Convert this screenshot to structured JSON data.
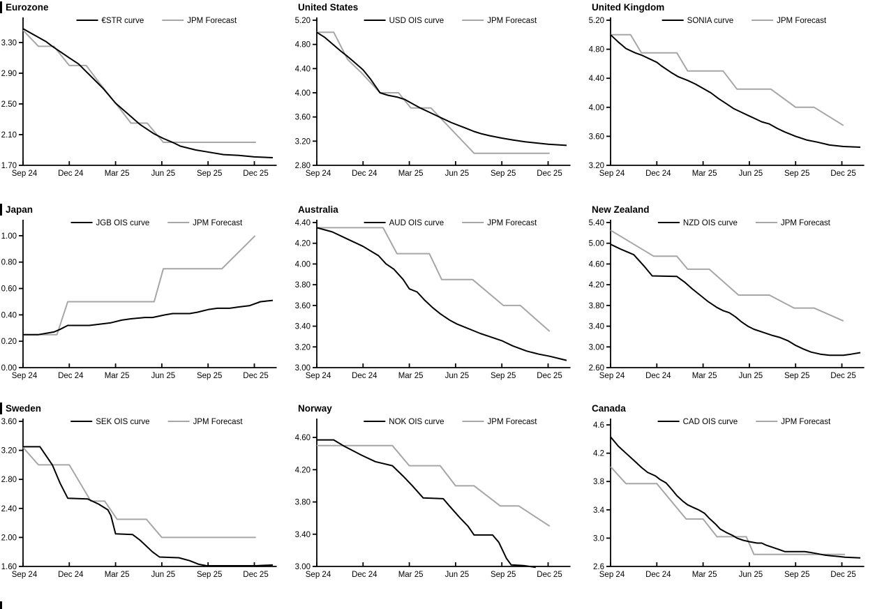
{
  "colors": {
    "curve": "#000000",
    "forecast": "#a6a6a6",
    "axis": "#000000",
    "accent_bar": "#000000"
  },
  "x_axis": {
    "tick_labels": [
      "Sep 24",
      "Dec 24",
      "Mar 25",
      "Jun 25",
      "Sep 25",
      "Dec 25"
    ],
    "tick_months": [
      0,
      3,
      6,
      9,
      12,
      15
    ],
    "month_span": 16.45
  },
  "chart_data": [
    {
      "type": "line",
      "title": "Eurozone",
      "legend_position": "top-center",
      "y_axis": {
        "ticks": [
          1.7,
          2.1,
          2.5,
          2.9,
          3.3
        ],
        "min": 1.7,
        "max": 3.59,
        "decimals": 2
      },
      "series": [
        {
          "name": "€STR curve",
          "role": "curve",
          "x": [
            0,
            0.7,
            1.5,
            1.9,
            3,
            3.6,
            4.2,
            5.2,
            6,
            6.8,
            7.6,
            8.5,
            9.1,
            9.8,
            10.2,
            11.2,
            11.8,
            13,
            14,
            15,
            16.2
          ],
          "y": [
            3.48,
            3.4,
            3.31,
            3.25,
            3.1,
            3.02,
            2.9,
            2.7,
            2.51,
            2.37,
            2.23,
            2.11,
            2.05,
            1.99,
            1.95,
            1.9,
            1.88,
            1.84,
            1.83,
            1.81,
            1.8
          ]
        },
        {
          "name": "JPM Forecast",
          "role": "forecast",
          "x": [
            0,
            1,
            2,
            3,
            4.1,
            5,
            6,
            7,
            8.05,
            9.1,
            15.1
          ],
          "y": [
            3.46,
            3.25,
            3.25,
            3.0,
            3.0,
            2.76,
            2.51,
            2.25,
            2.25,
            2.0,
            2.0
          ]
        }
      ]
    },
    {
      "type": "line",
      "title": "United States",
      "legend_position": "top-center",
      "y_axis": {
        "ticks": [
          2.8,
          3.2,
          3.6,
          4.0,
          4.4,
          4.8,
          5.2
        ],
        "min": 2.8,
        "max": 5.2,
        "decimals": 2
      },
      "series": [
        {
          "name": "USD OIS curve",
          "role": "curve",
          "x": [
            0,
            0.5,
            1,
            1.5,
            2,
            2.5,
            3,
            3.5,
            4.1,
            4.6,
            5.2,
            5.7,
            6.2,
            6.7,
            7.2,
            7.7,
            8.2,
            8.7,
            9.2,
            9.7,
            10.2,
            10.7,
            11.2,
            12,
            12.7,
            13.5,
            14.2,
            15,
            16.2
          ],
          "y": [
            5.0,
            4.92,
            4.81,
            4.7,
            4.6,
            4.49,
            4.38,
            4.22,
            4.0,
            3.96,
            3.93,
            3.89,
            3.82,
            3.75,
            3.69,
            3.63,
            3.57,
            3.51,
            3.46,
            3.41,
            3.36,
            3.32,
            3.29,
            3.25,
            3.22,
            3.19,
            3.17,
            3.15,
            3.13
          ]
        },
        {
          "name": "JPM Forecast",
          "role": "forecast",
          "x": [
            0,
            1.1,
            2,
            2.9,
            4.1,
            5.3,
            6.1,
            7.4,
            10.2,
            15.1
          ],
          "y": [
            5.0,
            5.0,
            4.55,
            4.33,
            4.0,
            4.0,
            3.75,
            3.75,
            3.0,
            3.0
          ]
        }
      ]
    },
    {
      "type": "line",
      "title": "United Kingdom",
      "legend_position": "top-center",
      "y_axis": {
        "ticks": [
          3.2,
          3.6,
          4.0,
          4.4,
          4.8,
          5.2
        ],
        "min": 3.2,
        "max": 5.2,
        "decimals": 2
      },
      "series": [
        {
          "name": "SONIA curve",
          "role": "curve",
          "x": [
            0,
            0.5,
            1,
            1.6,
            2,
            3,
            3.3,
            4,
            4.4,
            5,
            5.5,
            6,
            6.5,
            7,
            7.5,
            8,
            8.5,
            9,
            9.4,
            9.8,
            10.3,
            10.8,
            11.3,
            12,
            12.7,
            13.4,
            14.2,
            15.1,
            16.2
          ],
          "y": [
            5.0,
            4.9,
            4.81,
            4.75,
            4.72,
            4.62,
            4.57,
            4.47,
            4.42,
            4.37,
            4.32,
            4.26,
            4.2,
            4.12,
            4.05,
            3.98,
            3.93,
            3.88,
            3.84,
            3.8,
            3.77,
            3.71,
            3.66,
            3.6,
            3.55,
            3.52,
            3.48,
            3.46,
            3.45
          ]
        },
        {
          "name": "JPM Forecast",
          "role": "forecast",
          "x": [
            0,
            1.3,
            2,
            4.3,
            5,
            7.3,
            8.2,
            10.4,
            12,
            13.2,
            15.1
          ],
          "y": [
            5.0,
            5.0,
            4.75,
            4.75,
            4.5,
            4.5,
            4.25,
            4.25,
            4.0,
            4.0,
            3.75
          ]
        }
      ]
    },
    {
      "type": "line",
      "title": "Japan",
      "legend_position": "top-center",
      "y_axis": {
        "ticks": [
          0.0,
          0.2,
          0.4,
          0.6,
          0.8,
          1.0
        ],
        "min": 0.0,
        "max": 1.1,
        "decimals": 2
      },
      "series": [
        {
          "name": "JGB OIS curve",
          "role": "curve",
          "x": [
            0,
            1,
            2,
            2.4,
            2.9,
            4.3,
            5,
            5.7,
            6.4,
            7,
            7.9,
            8.4,
            9.2,
            9.7,
            10.8,
            11.3,
            12,
            12.6,
            13.4,
            14,
            14.7,
            15.4,
            16.2
          ],
          "y": [
            0.25,
            0.25,
            0.27,
            0.29,
            0.32,
            0.32,
            0.33,
            0.34,
            0.36,
            0.37,
            0.38,
            0.38,
            0.4,
            0.41,
            0.41,
            0.42,
            0.44,
            0.45,
            0.45,
            0.46,
            0.47,
            0.5,
            0.51
          ]
        },
        {
          "name": "JPM Forecast",
          "role": "forecast",
          "x": [
            0,
            2.2,
            2.9,
            8.5,
            9.1,
            12.9,
            15.05
          ],
          "y": [
            0.25,
            0.25,
            0.5,
            0.5,
            0.75,
            0.75,
            1.0
          ]
        }
      ]
    },
    {
      "type": "line",
      "title": "Australia",
      "legend_position": "top-center",
      "y_axis": {
        "ticks": [
          3.0,
          3.2,
          3.4,
          3.6,
          3.8,
          4.0,
          4.2,
          4.4
        ],
        "min": 3.0,
        "max": 4.4,
        "decimals": 2
      },
      "series": [
        {
          "name": "AUD OIS curve",
          "role": "curve",
          "x": [
            0,
            1,
            2,
            3,
            4,
            4.5,
            5,
            5.6,
            6,
            6.5,
            7,
            7.5,
            8,
            8.6,
            9.1,
            9.6,
            10.1,
            10.6,
            11.2,
            12,
            12.7,
            13.6,
            14.4,
            15.1,
            16.2
          ],
          "y": [
            4.35,
            4.31,
            4.24,
            4.17,
            4.08,
            4.0,
            3.95,
            3.85,
            3.76,
            3.73,
            3.65,
            3.58,
            3.52,
            3.46,
            3.42,
            3.39,
            3.36,
            3.33,
            3.3,
            3.26,
            3.21,
            3.16,
            3.13,
            3.11,
            3.07
          ]
        },
        {
          "name": "JPM Forecast",
          "role": "forecast",
          "x": [
            0,
            4.3,
            5.2,
            7.3,
            8.1,
            10.1,
            12.1,
            13.2,
            15.1
          ],
          "y": [
            4.35,
            4.35,
            4.1,
            4.1,
            3.85,
            3.85,
            3.6,
            3.6,
            3.35
          ]
        }
      ]
    },
    {
      "type": "line",
      "title": "New Zealand",
      "legend_position": "top-center",
      "y_axis": {
        "ticks": [
          2.6,
          3.0,
          3.4,
          3.8,
          4.2,
          4.6,
          5.0,
          5.4
        ],
        "min": 2.6,
        "max": 5.4,
        "decimals": 2
      },
      "series": [
        {
          "name": "NZD OIS curve",
          "role": "curve",
          "x": [
            0,
            0.7,
            1.5,
            2.2,
            2.7,
            4.3,
            4.8,
            5.3,
            5.8,
            6.3,
            6.9,
            7.3,
            7.7,
            8.1,
            8.5,
            8.9,
            9.3,
            10,
            10.5,
            11,
            11.5,
            12,
            12.5,
            13,
            13.6,
            14.2,
            15.1,
            15.6,
            16.2
          ],
          "y": [
            4.98,
            4.88,
            4.78,
            4.55,
            4.37,
            4.36,
            4.25,
            4.12,
            4.0,
            3.88,
            3.76,
            3.7,
            3.66,
            3.58,
            3.48,
            3.4,
            3.34,
            3.27,
            3.22,
            3.18,
            3.12,
            3.03,
            2.96,
            2.9,
            2.86,
            2.84,
            2.84,
            2.86,
            2.89
          ]
        },
        {
          "name": "JPM Forecast",
          "role": "forecast",
          "x": [
            0,
            2.8,
            4.3,
            5,
            6.4,
            8.3,
            10.3,
            11.9,
            13.2,
            15.1
          ],
          "y": [
            5.25,
            4.75,
            4.75,
            4.5,
            4.5,
            4.0,
            4.0,
            3.75,
            3.75,
            3.5
          ]
        }
      ]
    },
    {
      "type": "line",
      "title": "Sweden",
      "legend_position": "top-center",
      "y_axis": {
        "ticks": [
          1.6,
          2.0,
          2.4,
          2.8,
          3.2,
          3.6
        ],
        "min": 1.6,
        "max": 3.6,
        "decimals": 2
      },
      "series": [
        {
          "name": "SEK OIS curve",
          "role": "curve",
          "x": [
            0,
            1.1,
            1.9,
            2.4,
            2.9,
            4.2,
            4.9,
            5.5,
            5.7,
            6,
            7.1,
            7.6,
            8.4,
            8.85,
            10.1,
            10.8,
            11.4,
            11.9,
            15.1,
            16.2
          ],
          "y": [
            3.25,
            3.25,
            3.0,
            2.75,
            2.54,
            2.53,
            2.46,
            2.38,
            2.3,
            2.05,
            2.04,
            1.96,
            1.8,
            1.73,
            1.72,
            1.68,
            1.63,
            1.61,
            1.61,
            1.62
          ]
        },
        {
          "name": "JPM Forecast",
          "role": "forecast",
          "x": [
            0,
            1,
            3,
            4.4,
            5.3,
            6.1,
            8,
            9,
            15.1
          ],
          "y": [
            3.24,
            3.0,
            3.0,
            2.5,
            2.5,
            2.25,
            2.25,
            2.0,
            2.0
          ]
        }
      ]
    },
    {
      "type": "line",
      "title": "Norway",
      "legend_position": "top-center",
      "y_axis": {
        "ticks": [
          3.0,
          3.4,
          3.8,
          4.2,
          4.6
        ],
        "min": 3.0,
        "max": 4.8,
        "decimals": 2
      },
      "series": [
        {
          "name": "NOK OIS curve",
          "role": "curve",
          "x": [
            0,
            1.1,
            1.7,
            2.9,
            3.8,
            4.9,
            5.6,
            6.2,
            6.9,
            8.2,
            8.6,
            9.3,
            9.8,
            10.2,
            11.4,
            11.8,
            12.3,
            12.6,
            13.4,
            14.2
          ],
          "y": [
            4.57,
            4.57,
            4.5,
            4.38,
            4.3,
            4.25,
            4.12,
            4.0,
            3.85,
            3.84,
            3.75,
            3.6,
            3.5,
            3.39,
            3.39,
            3.3,
            3.1,
            3.02,
            3.01,
            2.99
          ]
        },
        {
          "name": "JPM Forecast",
          "role": "forecast",
          "x": [
            0,
            4.9,
            6,
            8,
            9,
            10.2,
            11.9,
            13.1,
            15.1
          ],
          "y": [
            4.5,
            4.5,
            4.25,
            4.25,
            4.0,
            4.0,
            3.75,
            3.75,
            3.5
          ]
        }
      ]
    },
    {
      "type": "line",
      "title": "Canada",
      "legend_position": "top-center",
      "y_axis": {
        "ticks": [
          2.6,
          3.0,
          3.4,
          3.8,
          4.2,
          4.6
        ],
        "min": 2.6,
        "max": 4.65,
        "decimals": 1
      },
      "series": [
        {
          "name": "CAD OIS curve",
          "role": "curve",
          "x": [
            0,
            0.5,
            1,
            1.5,
            2,
            2.4,
            2.9,
            3.2,
            3.6,
            4,
            4.3,
            4.7,
            5,
            5.4,
            5.7,
            6.1,
            6.4,
            6.8,
            7.1,
            7.5,
            7.9,
            8.2,
            8.6,
            9,
            9.5,
            9.8,
            10.1,
            10.5,
            10.9,
            11.3,
            12.6,
            12.9,
            13.4,
            13.9,
            14.3,
            14.8,
            15.2,
            16.2
          ],
          "y": [
            4.43,
            4.3,
            4.2,
            4.1,
            4.0,
            3.93,
            3.88,
            3.83,
            3.78,
            3.68,
            3.6,
            3.52,
            3.47,
            3.43,
            3.4,
            3.35,
            3.28,
            3.2,
            3.13,
            3.08,
            3.04,
            3.0,
            2.97,
            2.95,
            2.93,
            2.93,
            2.9,
            2.87,
            2.84,
            2.81,
            2.81,
            2.8,
            2.78,
            2.76,
            2.75,
            2.74,
            2.73,
            2.72
          ]
        },
        {
          "name": "JPM Forecast",
          "role": "forecast",
          "x": [
            0,
            1,
            3,
            4.9,
            6,
            6.9,
            8.8,
            9.3,
            15.2
          ],
          "y": [
            4.01,
            3.77,
            3.77,
            3.27,
            3.27,
            3.02,
            3.02,
            2.77,
            2.77
          ]
        }
      ]
    }
  ]
}
